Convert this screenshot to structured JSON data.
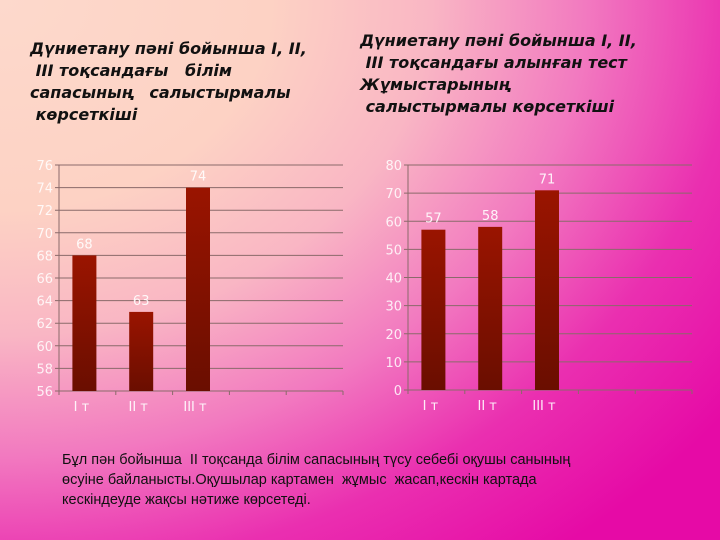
{
  "slide": {
    "left_title": "Дүниетану пәні бойынша I, II,\n III тоқсандағы   білім\nсапасының   салыстырмалы\n көрсеткіші",
    "right_title": "Дүниетану пәні бойынша I, II,\n III тоқсандағы алынған тест\nЖұмыстарының\n салыстырмалы көрсеткіші",
    "footnote": "Бұл пән бойынша  II тоқсанда білім сапасының түсу себебі оқушы санының\nөсуіне байланысты.Оқушылар картамен  жұмыс  жасап,кескін картада\nкескіндеуде жақсы нәтиже көрсетеді."
  },
  "colors": {
    "bar_top": "#9a1400",
    "bar_bottom": "#6a0e00",
    "gridline": "#8a6a6a",
    "axis_label": "#ffffff",
    "title_text": "#111111"
  },
  "chart_data": [
    {
      "type": "bar",
      "title": "Дүниетану пәні бойынша I, II, III тоқсандағы білім сапасының салыстырмалы көрсеткіші",
      "categories": [
        "I т",
        "II т",
        "III т"
      ],
      "values": [
        68,
        63,
        74
      ],
      "data_labels": [
        "68",
        "63",
        "74"
      ],
      "xlabel": "",
      "ylabel": "",
      "ylim": [
        56,
        76
      ],
      "yticks": [
        56,
        58,
        60,
        62,
        64,
        66,
        68,
        70,
        72,
        74,
        76
      ],
      "grid": true,
      "legend": "none"
    },
    {
      "type": "bar",
      "title": "Дүниетану пәні бойынша I, II, III тоқсандағы алынған тест жұмыстарының салыстырмалы көрсеткіші",
      "categories": [
        "I т",
        "II т",
        "III т"
      ],
      "values": [
        57,
        58,
        71
      ],
      "data_labels": [
        "57",
        "58",
        "71"
      ],
      "xlabel": "",
      "ylabel": "",
      "ylim": [
        0,
        80
      ],
      "yticks": [
        0,
        10,
        20,
        30,
        40,
        50,
        60,
        70,
        80
      ],
      "grid": true,
      "legend": "none"
    }
  ]
}
